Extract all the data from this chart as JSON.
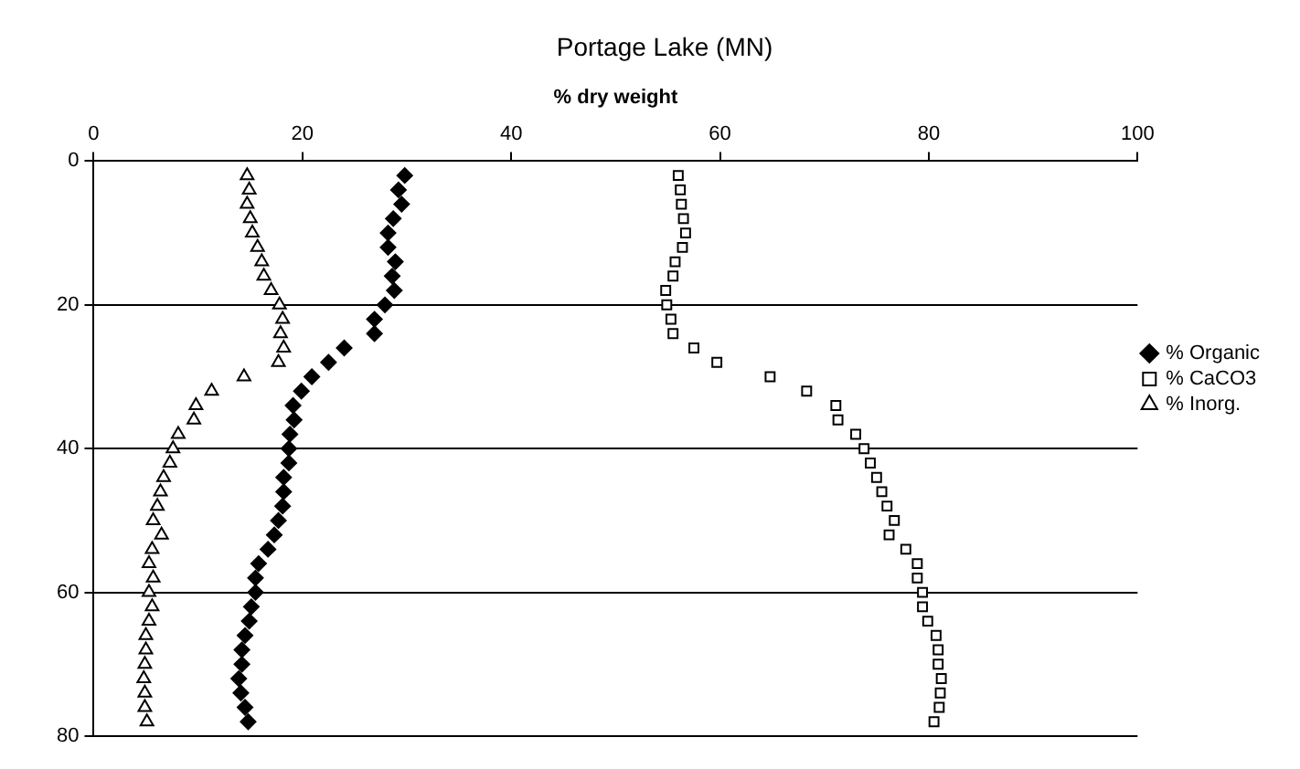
{
  "chart_data": {
    "type": "scatter",
    "title": "Portage Lake (MN)",
    "xlabel": "% dry weight",
    "xlim": [
      0,
      100
    ],
    "xticks": [
      0,
      20,
      40,
      60,
      80,
      100
    ],
    "ylim": [
      80,
      0
    ],
    "yticks": [
      0,
      20,
      40,
      60,
      80
    ],
    "grid": "y",
    "legend": "right",
    "series": [
      {
        "name": "% Organic",
        "color": "#000000",
        "marker": "diamond",
        "x": [
          29.8,
          29.2,
          29.5,
          28.7,
          28.2,
          28.2,
          28.9,
          28.6,
          28.8,
          27.9,
          26.9,
          26.9,
          24.0,
          22.5,
          20.9,
          19.9,
          19.1,
          19.2,
          18.8,
          18.7,
          18.7,
          18.2,
          18.2,
          18.1,
          17.7,
          17.3,
          16.7,
          15.8,
          15.5,
          15.5,
          15.1,
          14.9,
          14.5,
          14.2,
          14.2,
          13.9,
          14.1,
          14.5,
          14.8
        ],
        "values": [
          2,
          4,
          6,
          8,
          10,
          12,
          14,
          16,
          18,
          20,
          22,
          24,
          26,
          28,
          30,
          32,
          34,
          36,
          38,
          40,
          42,
          44,
          46,
          48,
          50,
          52,
          54,
          56,
          58,
          60,
          62,
          64,
          66,
          68,
          70,
          72,
          74,
          76,
          78
        ]
      },
      {
        "name": "% CaCO3",
        "color": "#000000",
        "marker": "square",
        "x": [
          56.0,
          56.2,
          56.3,
          56.5,
          56.7,
          56.4,
          55.7,
          55.5,
          54.8,
          54.9,
          55.3,
          55.5,
          57.5,
          59.7,
          64.8,
          68.3,
          71.1,
          71.3,
          73.0,
          73.8,
          74.4,
          75.0,
          75.5,
          76.0,
          76.7,
          76.2,
          77.8,
          78.9,
          78.9,
          79.4,
          79.4,
          79.9,
          80.7,
          80.9,
          80.9,
          81.2,
          81.1,
          81.0,
          80.5
        ],
        "values": [
          2,
          4,
          6,
          8,
          10,
          12,
          14,
          16,
          18,
          20,
          22,
          24,
          26,
          28,
          30,
          32,
          34,
          36,
          38,
          40,
          42,
          44,
          46,
          48,
          50,
          52,
          54,
          56,
          58,
          60,
          62,
          64,
          66,
          68,
          70,
          72,
          74,
          76,
          78
        ]
      },
      {
        "name": "% Inorg.",
        "color": "#000000",
        "marker": "triangle",
        "x": [
          14.7,
          14.9,
          14.7,
          15.0,
          15.2,
          15.7,
          16.1,
          16.3,
          17.0,
          17.8,
          18.1,
          17.9,
          18.2,
          17.7,
          14.4,
          11.3,
          9.8,
          9.6,
          8.1,
          7.6,
          7.3,
          6.7,
          6.4,
          6.1,
          5.7,
          6.5,
          5.6,
          5.3,
          5.7,
          5.3,
          5.6,
          5.3,
          5.0,
          5.0,
          4.9,
          4.8,
          4.9,
          4.9,
          5.1
        ],
        "values": [
          2,
          4,
          6,
          8,
          10,
          12,
          14,
          16,
          18,
          20,
          22,
          24,
          26,
          28,
          30,
          32,
          34,
          36,
          38,
          40,
          42,
          44,
          46,
          48,
          50,
          52,
          54,
          56,
          58,
          60,
          62,
          64,
          66,
          68,
          70,
          72,
          74,
          76,
          78
        ]
      }
    ]
  }
}
